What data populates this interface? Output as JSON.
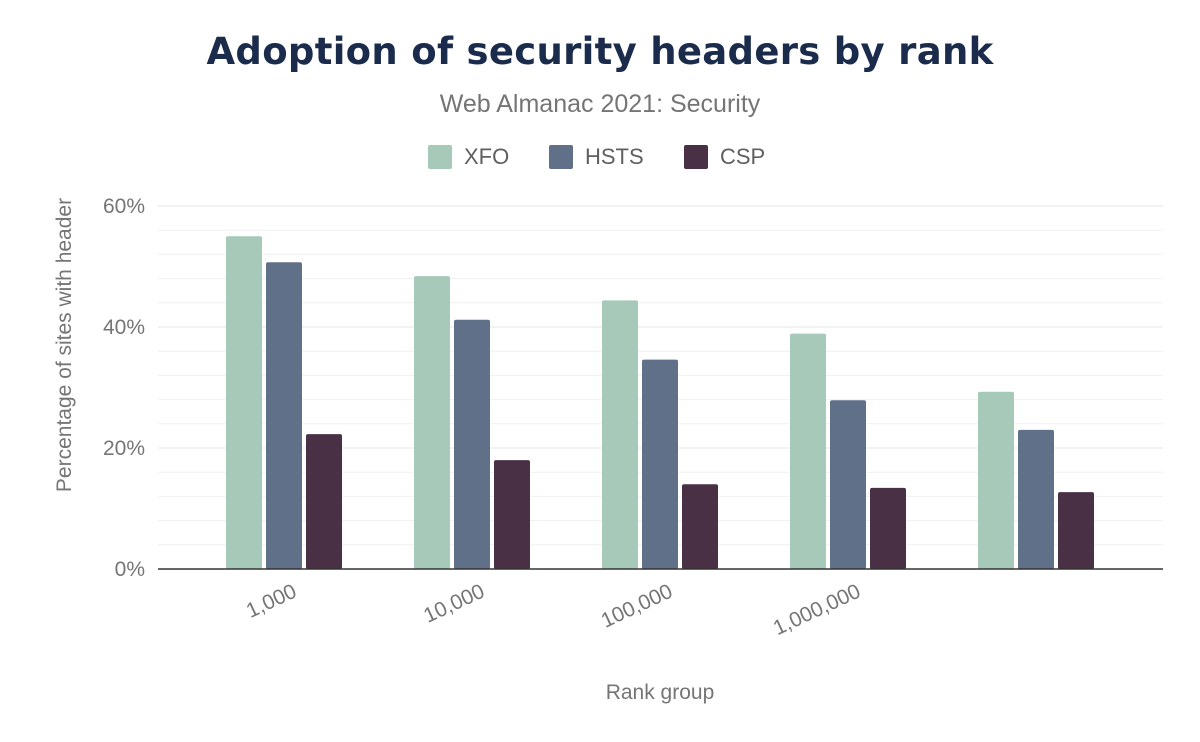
{
  "chart_data": {
    "type": "bar",
    "title": "Adoption of security headers by rank",
    "subtitle": "Web Almanac 2021: Security",
    "xlabel": "Rank group",
    "ylabel": "Percentage of sites with header",
    "categories": [
      "1,000",
      "10,000",
      "100,000",
      "1,000,000",
      ""
    ],
    "series": [
      {
        "name": "XFO",
        "color": "#a6c9ba",
        "values": [
          55.0,
          48.4,
          44.4,
          38.9,
          29.3
        ]
      },
      {
        "name": "HSTS",
        "color": "#607089",
        "values": [
          50.7,
          41.2,
          34.6,
          27.9,
          23.0
        ]
      },
      {
        "name": "CSP",
        "color": "#4a3044",
        "values": [
          22.3,
          18.0,
          14.0,
          13.4,
          12.7
        ]
      }
    ],
    "ylim": [
      0,
      60
    ],
    "yticks": [
      0,
      20,
      40,
      60
    ],
    "ytick_labels": [
      "0%",
      "20%",
      "40%",
      "60%"
    ],
    "grid": true,
    "legend_position": "top"
  }
}
